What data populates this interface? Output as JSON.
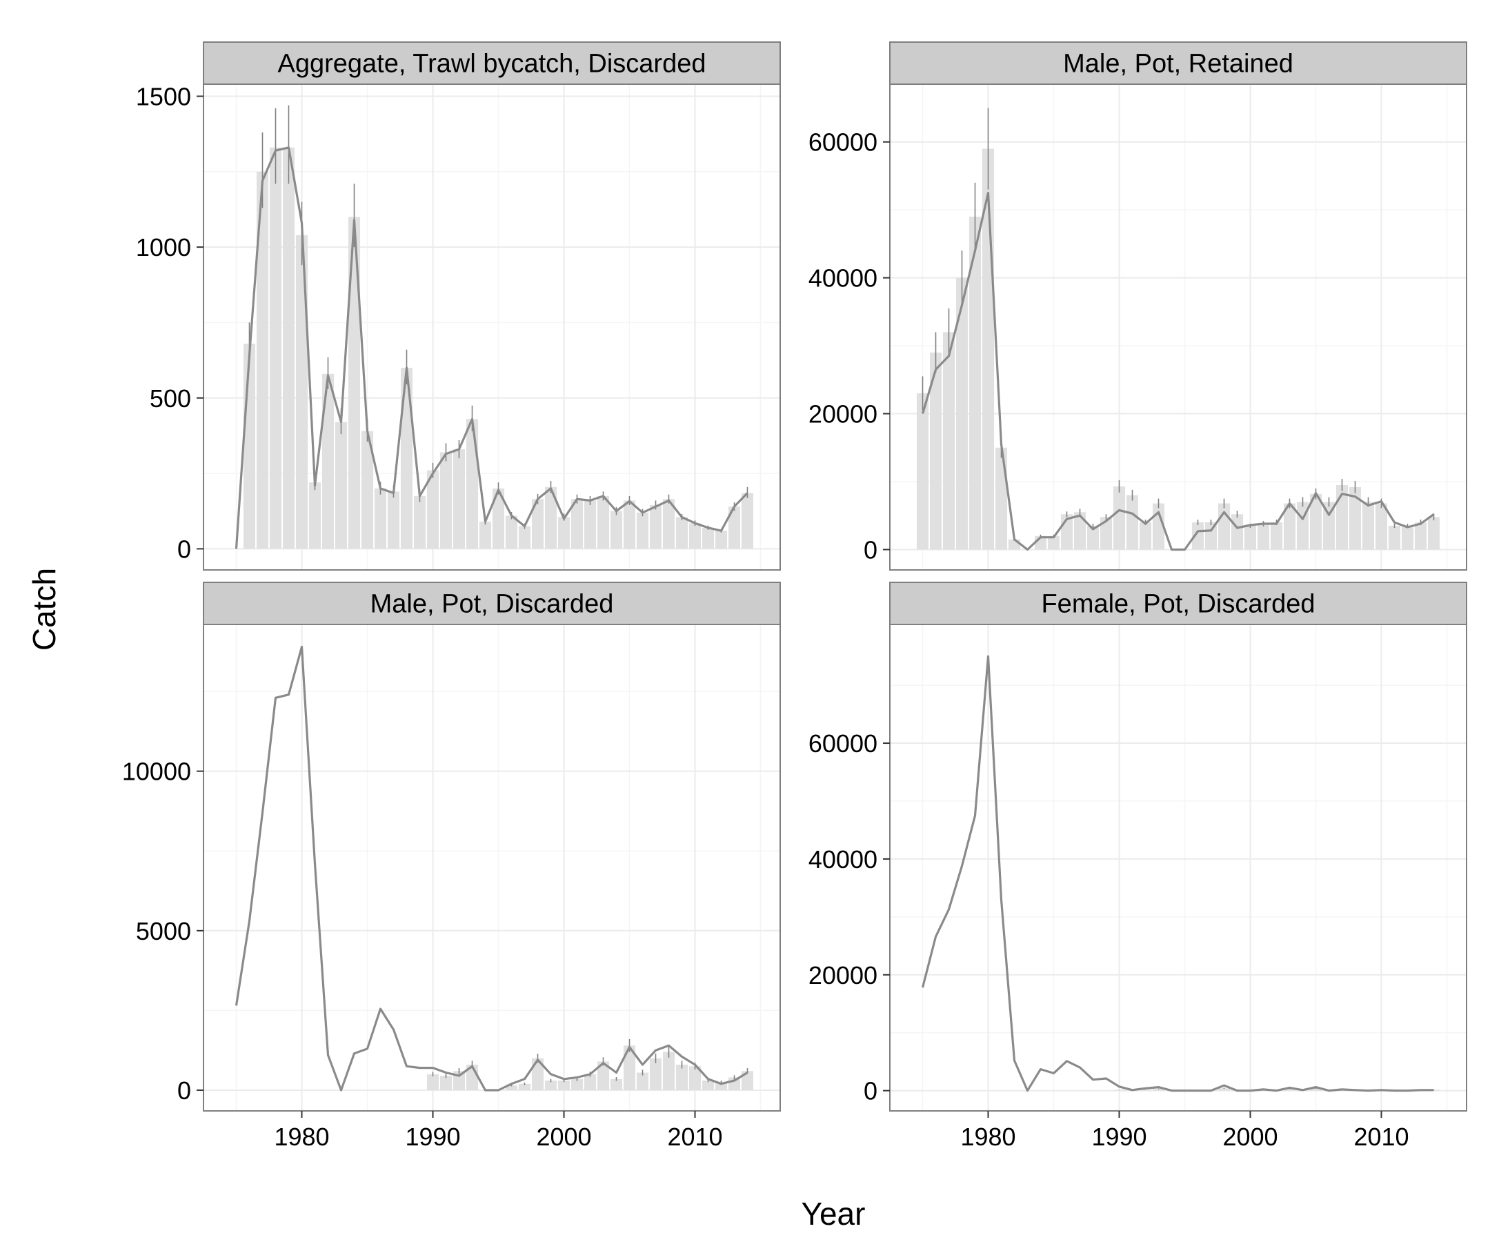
{
  "figure": {
    "xlabel": "Year",
    "ylabel": "Catch"
  },
  "colors": {
    "panel_background": "#ffffff",
    "strip_background": "#cccccc",
    "grid": "#ebebeb",
    "bar_fill": "#e0e0e0",
    "line": "#8a8a8a",
    "errorbar": "#808080",
    "border": "#7f7f7f",
    "text": "#000000"
  },
  "chart_data": [
    {
      "type": "bar",
      "title": "Aggregate, Trawl bycatch, Discarded",
      "xlim": [
        1972.5,
        2016.5
      ],
      "ylim": [
        -70,
        1540
      ],
      "x_ticks": [
        1980,
        1990,
        2000,
        2010
      ],
      "y_ticks": [
        0,
        500,
        1000,
        1500
      ],
      "grid": true,
      "observed": {
        "x": [
          1976,
          1977,
          1978,
          1979,
          1980,
          1981,
          1982,
          1983,
          1984,
          1985,
          1986,
          1987,
          1988,
          1989,
          1990,
          1991,
          1992,
          1993,
          1994,
          1995,
          1996,
          1997,
          1998,
          1999,
          2000,
          2001,
          2002,
          2003,
          2004,
          2005,
          2006,
          2007,
          2008,
          2009,
          2010,
          2011,
          2012,
          2013,
          2014
        ],
        "y": [
          680,
          1250,
          1330,
          1330,
          1040,
          220,
          580,
          420,
          1100,
          390,
          200,
          190,
          600,
          175,
          260,
          320,
          330,
          430,
          90,
          200,
          110,
          75,
          165,
          205,
          105,
          165,
          160,
          175,
          125,
          160,
          120,
          145,
          165,
          105,
          85,
          70,
          60,
          140,
          185
        ],
        "lower": [
          620,
          1130,
          1210,
          1210,
          940,
          195,
          530,
          380,
          1000,
          355,
          180,
          170,
          545,
          155,
          235,
          290,
          300,
          390,
          80,
          180,
          98,
          66,
          148,
          185,
          93,
          150,
          145,
          160,
          112,
          145,
          108,
          130,
          150,
          95,
          76,
          63,
          54,
          126,
          168
        ],
        "upper": [
          750,
          1380,
          1460,
          1470,
          1150,
          245,
          635,
          465,
          1210,
          430,
          222,
          210,
          660,
          195,
          285,
          350,
          360,
          475,
          100,
          220,
          122,
          84,
          182,
          225,
          117,
          180,
          175,
          190,
          138,
          175,
          132,
          160,
          180,
          115,
          94,
          77,
          66,
          154,
          205
        ]
      },
      "predicted": {
        "x": [
          1975,
          1976,
          1977,
          1978,
          1979,
          1980,
          1981,
          1982,
          1983,
          1984,
          1985,
          1986,
          1987,
          1988,
          1989,
          1990,
          1991,
          1992,
          1993,
          1994,
          1995,
          1996,
          1997,
          1998,
          1999,
          2000,
          2001,
          2002,
          2003,
          2004,
          2005,
          2006,
          2007,
          2008,
          2009,
          2010,
          2011,
          2012,
          2013,
          2014
        ],
        "y": [
          0,
          640,
          1220,
          1320,
          1330,
          1080,
          210,
          575,
          420,
          1090,
          390,
          200,
          185,
          600,
          175,
          250,
          315,
          330,
          430,
          90,
          195,
          110,
          75,
          165,
          200,
          100,
          165,
          160,
          175,
          125,
          158,
          120,
          140,
          160,
          105,
          85,
          70,
          60,
          140,
          185
        ]
      }
    },
    {
      "type": "bar",
      "title": "Male, Pot, Retained",
      "xlim": [
        1972.5,
        2016.5
      ],
      "ylim": [
        -3000,
        68500
      ],
      "x_ticks": [
        1980,
        1990,
        2000,
        2010
      ],
      "y_ticks": [
        0,
        20000,
        40000,
        60000
      ],
      "grid": true,
      "observed": {
        "x": [
          1975,
          1976,
          1977,
          1978,
          1979,
          1980,
          1981,
          1982,
          1983,
          1984,
          1985,
          1986,
          1987,
          1988,
          1989,
          1990,
          1991,
          1992,
          1993,
          1994,
          1995,
          1996,
          1997,
          1998,
          1999,
          2000,
          2001,
          2002,
          2003,
          2004,
          2005,
          2006,
          2007,
          2008,
          2009,
          2010,
          2011,
          2012,
          2013,
          2014
        ],
        "y": [
          23000,
          29000,
          32000,
          40000,
          49000,
          59000,
          15000,
          1500,
          0,
          2000,
          2000,
          5200,
          5500,
          3500,
          4800,
          9300,
          8000,
          4000,
          6800,
          0,
          0,
          4000,
          4000,
          6800,
          5200,
          3500,
          3800,
          4000,
          6800,
          7000,
          8200,
          7000,
          9500,
          9200,
          7000,
          6800,
          3500,
          3500,
          4000,
          4800
        ],
        "lower": [
          20500,
          26000,
          28500,
          36000,
          44000,
          53000,
          13500,
          1300,
          0,
          1800,
          1800,
          4800,
          5000,
          3200,
          4400,
          8400,
          7200,
          3600,
          6100,
          0,
          0,
          3600,
          3600,
          6100,
          4700,
          3200,
          3400,
          3600,
          6100,
          6300,
          7400,
          6300,
          8600,
          8300,
          6300,
          6100,
          3200,
          3200,
          3600,
          4300
        ],
        "upper": [
          25500,
          32000,
          35500,
          44000,
          54000,
          65000,
          16500,
          1700,
          0,
          2200,
          2200,
          5600,
          6000,
          3800,
          5200,
          10200,
          8800,
          4400,
          7500,
          0,
          0,
          4400,
          4400,
          7500,
          5700,
          3800,
          4200,
          4400,
          7500,
          7700,
          9000,
          7700,
          10400,
          10100,
          7700,
          7500,
          3800,
          3800,
          4400,
          5300
        ]
      },
      "predicted": {
        "x": [
          1975,
          1976,
          1977,
          1978,
          1979,
          1980,
          1981,
          1982,
          1983,
          1984,
          1985,
          1986,
          1987,
          1988,
          1989,
          1990,
          1991,
          1992,
          1993,
          1994,
          1995,
          1996,
          1997,
          1998,
          1999,
          2000,
          2001,
          2002,
          2003,
          2004,
          2005,
          2006,
          2007,
          2008,
          2009,
          2010,
          2011,
          2012,
          2013,
          2014
        ],
        "y": [
          20000,
          26500,
          28500,
          36000,
          44000,
          52500,
          15500,
          1500,
          0,
          1800,
          1800,
          4500,
          5000,
          3000,
          4200,
          5800,
          5300,
          3800,
          5500,
          0,
          0,
          2700,
          2800,
          5500,
          3200,
          3600,
          3800,
          3800,
          6800,
          4500,
          8300,
          5100,
          8200,
          7800,
          6500,
          7100,
          4000,
          3300,
          3800,
          5200
        ]
      }
    },
    {
      "type": "bar",
      "title": "Male, Pot, Discarded",
      "xlim": [
        1972.5,
        2016.5
      ],
      "ylim": [
        -650,
        14600
      ],
      "x_ticks": [
        1980,
        1990,
        2000,
        2010
      ],
      "y_ticks": [
        0,
        5000,
        10000
      ],
      "grid": true,
      "observed": {
        "x": [
          1990,
          1991,
          1992,
          1993,
          1994,
          1995,
          1996,
          1997,
          1998,
          1999,
          2000,
          2001,
          2002,
          2003,
          2004,
          2005,
          2006,
          2007,
          2008,
          2009,
          2010,
          2011,
          2012,
          2013,
          2014
        ],
        "y": [
          500,
          450,
          600,
          800,
          0,
          0,
          150,
          200,
          1000,
          300,
          300,
          350,
          500,
          900,
          350,
          1400,
          550,
          1000,
          1200,
          800,
          750,
          300,
          250,
          400,
          600
        ],
        "lower": [
          430,
          380,
          510,
          680,
          0,
          0,
          120,
          160,
          860,
          250,
          250,
          290,
          420,
          770,
          290,
          1200,
          460,
          850,
          1020,
          680,
          640,
          250,
          200,
          330,
          510
        ],
        "upper": [
          570,
          520,
          690,
          920,
          0,
          0,
          180,
          240,
          1140,
          350,
          350,
          410,
          580,
          1030,
          410,
          1600,
          640,
          1150,
          1380,
          920,
          860,
          350,
          300,
          470,
          690
        ]
      },
      "predicted": {
        "x": [
          1975,
          1976,
          1977,
          1978,
          1979,
          1980,
          1981,
          1982,
          1983,
          1984,
          1985,
          1986,
          1987,
          1988,
          1989,
          1990,
          1991,
          1992,
          1993,
          1994,
          1995,
          1996,
          1997,
          1998,
          1999,
          2000,
          2001,
          2002,
          2003,
          2004,
          2005,
          2006,
          2007,
          2008,
          2009,
          2010,
          2011,
          2012,
          2013,
          2014
        ],
        "y": [
          2650,
          5300,
          8700,
          12300,
          12400,
          13900,
          7100,
          1100,
          0,
          1150,
          1300,
          2550,
          1900,
          750,
          700,
          700,
          550,
          450,
          750,
          0,
          0,
          200,
          350,
          950,
          500,
          350,
          400,
          500,
          850,
          550,
          1350,
          800,
          1250,
          1400,
          1050,
          800,
          350,
          200,
          300,
          550
        ]
      }
    },
    {
      "type": "line",
      "title": "Female, Pot, Discarded",
      "xlim": [
        1972.5,
        2016.5
      ],
      "ylim": [
        -3500,
        80500
      ],
      "x_ticks": [
        1980,
        1990,
        2000,
        2010
      ],
      "y_ticks": [
        0,
        20000,
        40000,
        60000
      ],
      "grid": true,
      "observed": {
        "x": [
          1990,
          1991,
          1992,
          1993,
          1994,
          1995,
          1996,
          1997,
          1998,
          1999,
          2000,
          2001,
          2002,
          2003,
          2004,
          2005,
          2006,
          2007,
          2008,
          2009,
          2010,
          2011,
          2012,
          2013,
          2014
        ],
        "y": [
          150,
          100,
          200,
          300,
          0,
          0,
          50,
          60,
          400,
          150,
          100,
          120,
          150,
          300,
          150,
          350,
          150,
          200,
          250,
          150,
          150,
          100,
          80,
          100,
          150
        ],
        "lower": [
          120,
          80,
          160,
          240,
          0,
          0,
          40,
          50,
          320,
          120,
          80,
          100,
          120,
          240,
          120,
          280,
          120,
          160,
          200,
          120,
          120,
          80,
          60,
          80,
          120
        ],
        "upper": [
          180,
          120,
          240,
          360,
          0,
          0,
          60,
          70,
          480,
          180,
          120,
          140,
          180,
          360,
          180,
          420,
          180,
          240,
          300,
          180,
          180,
          120,
          100,
          120,
          180
        ]
      },
      "predicted": {
        "x": [
          1975,
          1976,
          1977,
          1978,
          1979,
          1980,
          1981,
          1982,
          1983,
          1984,
          1985,
          1986,
          1987,
          1988,
          1989,
          1990,
          1991,
          1992,
          1993,
          1994,
          1995,
          1996,
          1997,
          1998,
          1999,
          2000,
          2001,
          2002,
          2003,
          2004,
          2005,
          2006,
          2007,
          2008,
          2009,
          2010,
          2011,
          2012,
          2013,
          2014
        ],
        "y": [
          17800,
          26600,
          31300,
          38800,
          47500,
          75000,
          33000,
          5200,
          0,
          3700,
          3000,
          5100,
          4000,
          1900,
          2100,
          700,
          100,
          400,
          600,
          0,
          0,
          0,
          0,
          900,
          0,
          0,
          200,
          0,
          500,
          100,
          600,
          0,
          200,
          100,
          0,
          100,
          0,
          0,
          100,
          100
        ]
      }
    }
  ]
}
